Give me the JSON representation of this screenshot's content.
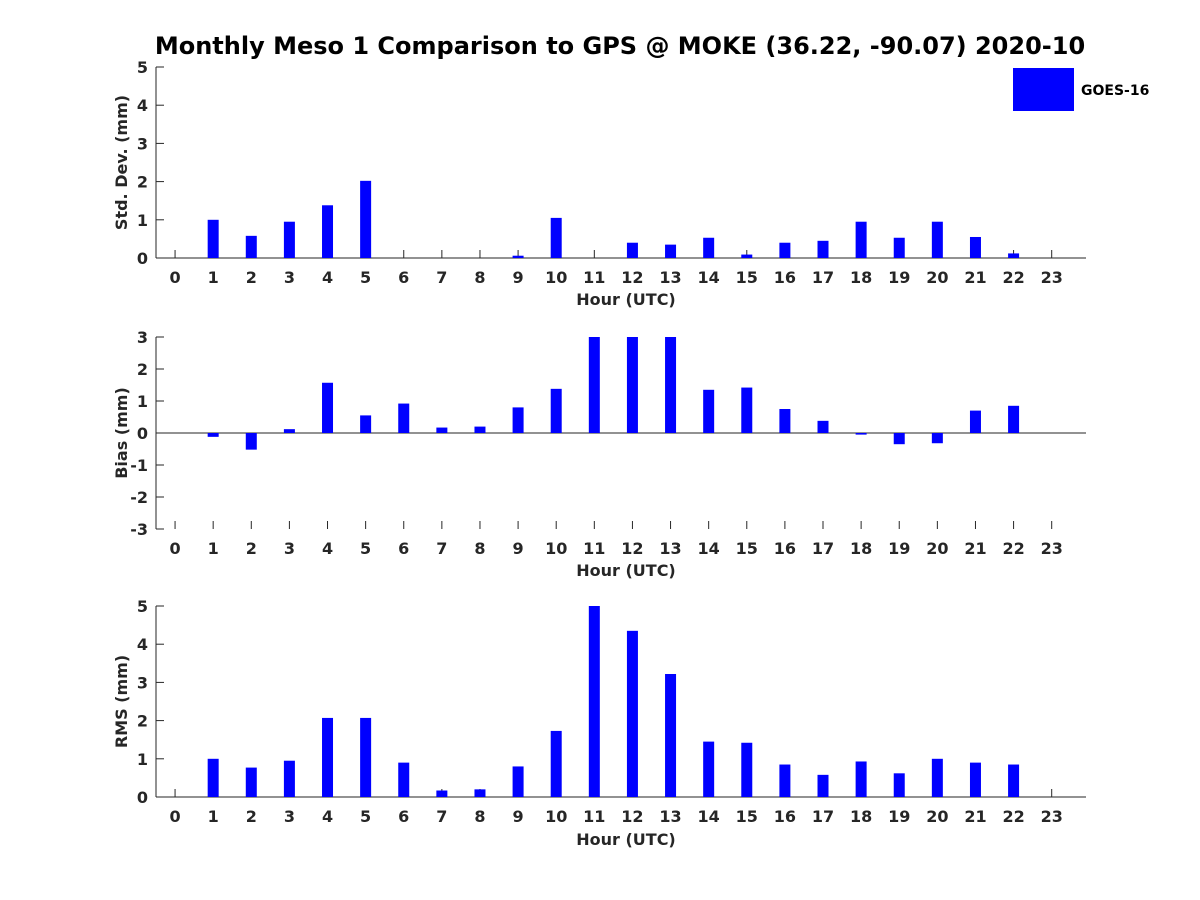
{
  "title": "Monthly Meso 1 Comparison to GPS @ MOKE (36.22, -90.07) 2020-10",
  "bar_color": "#0000ff",
  "legend": {
    "label": "GOES-16",
    "placement": "top-right"
  },
  "chart_data": [
    {
      "type": "bar",
      "name": "std_dev",
      "xlabel": "Hour (UTC)",
      "ylabel": "Std. Dev. (mm)",
      "ylim": [
        0,
        5
      ],
      "yticks": [
        0,
        1,
        2,
        3,
        4,
        5
      ],
      "xlim": [
        -0.5,
        23.9
      ],
      "categories": [
        0,
        1,
        2,
        3,
        4,
        5,
        6,
        7,
        8,
        9,
        10,
        11,
        12,
        13,
        14,
        15,
        16,
        17,
        18,
        19,
        20,
        21,
        22,
        23
      ],
      "values": [
        null,
        1.0,
        0.58,
        0.95,
        1.38,
        2.02,
        null,
        null,
        null,
        0.06,
        1.05,
        null,
        0.4,
        0.35,
        0.53,
        0.09,
        0.4,
        0.45,
        0.95,
        0.53,
        0.95,
        0.55,
        0.12,
        null
      ],
      "series_name": "GOES-16"
    },
    {
      "type": "bar",
      "name": "bias",
      "xlabel": "Hour (UTC)",
      "ylabel": "Bias (mm)",
      "ylim": [
        -3,
        3
      ],
      "yticks": [
        -3,
        -2,
        -1,
        0,
        1,
        2,
        3
      ],
      "xlim": [
        -0.5,
        23.9
      ],
      "categories": [
        0,
        1,
        2,
        3,
        4,
        5,
        6,
        7,
        8,
        9,
        10,
        11,
        12,
        13,
        14,
        15,
        16,
        17,
        18,
        19,
        20,
        21,
        22,
        23
      ],
      "values": [
        null,
        -0.12,
        -0.52,
        0.12,
        1.57,
        0.55,
        0.92,
        0.17,
        0.2,
        0.8,
        1.38,
        3.0,
        3.0,
        3.0,
        1.35,
        1.42,
        0.75,
        0.38,
        -0.05,
        -0.35,
        -0.32,
        0.7,
        0.85,
        null
      ],
      "series_name": "GOES-16"
    },
    {
      "type": "bar",
      "name": "rms",
      "xlabel": "Hour (UTC)",
      "ylabel": "RMS (mm)",
      "ylim": [
        0,
        5
      ],
      "yticks": [
        0,
        1,
        2,
        3,
        4,
        5
      ],
      "xlim": [
        -0.5,
        23.9
      ],
      "categories": [
        0,
        1,
        2,
        3,
        4,
        5,
        6,
        7,
        8,
        9,
        10,
        11,
        12,
        13,
        14,
        15,
        16,
        17,
        18,
        19,
        20,
        21,
        22,
        23
      ],
      "values": [
        null,
        1.0,
        0.77,
        0.95,
        2.07,
        2.07,
        0.9,
        0.17,
        0.2,
        0.8,
        1.73,
        5.0,
        4.35,
        3.22,
        1.45,
        1.42,
        0.85,
        0.58,
        0.93,
        0.62,
        1.0,
        0.9,
        0.85,
        null
      ],
      "series_name": "GOES-16"
    }
  ]
}
